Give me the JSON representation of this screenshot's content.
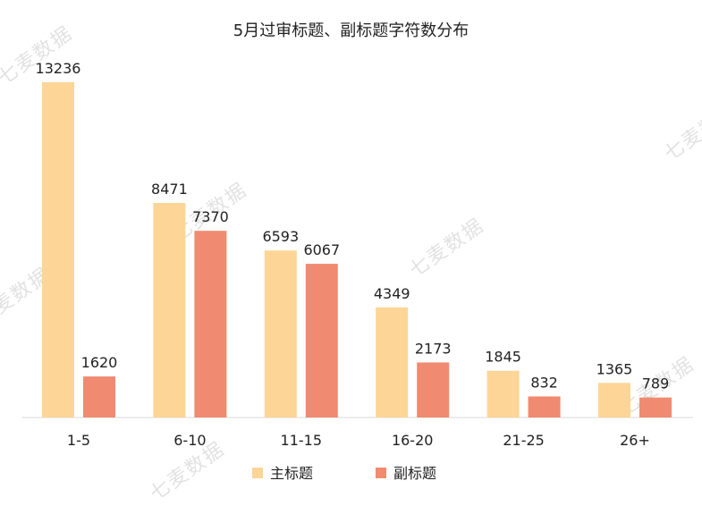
{
  "chart_data": {
    "type": "bar",
    "title": "5月过审标题、副标题字符数分布",
    "categories": [
      "1-5",
      "6-10",
      "11-15",
      "16-20",
      "21-25",
      "26+"
    ],
    "series": [
      {
        "name": "主标题",
        "color": "#FDD596",
        "values": [
          13236,
          8471,
          6593,
          4349,
          1845,
          1365
        ]
      },
      {
        "name": "副标题",
        "color": "#F08A70",
        "values": [
          1620,
          7370,
          6067,
          2173,
          832,
          789
        ]
      }
    ],
    "ylim": [
      0,
      13236
    ],
    "grid": false,
    "legend": "bottom"
  },
  "watermark": "七麦数据"
}
